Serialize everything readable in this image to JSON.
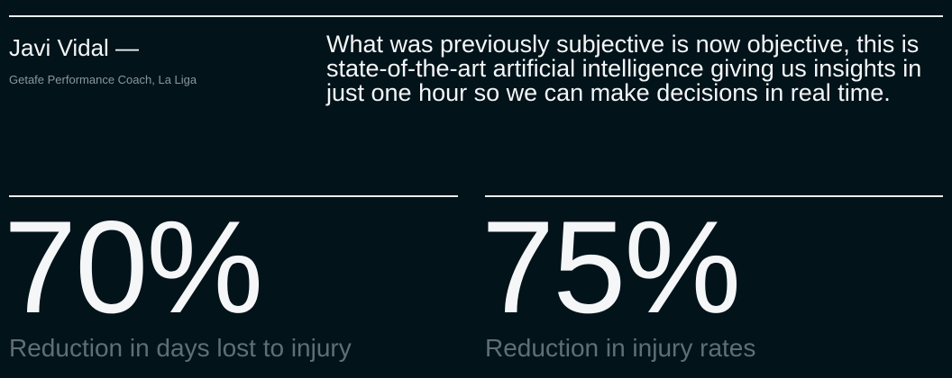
{
  "testimonial": {
    "author_name": "Javi Vidal —",
    "author_role": "Getafe Performance Coach, La Liga",
    "quote": "What was previously subjective is now objective, this is state-of-the-art artificial intelligence giving us insights in just one hour so we can make decisions in real time."
  },
  "stats": [
    {
      "value": "70%",
      "label": "Reduction in days lost to injury"
    },
    {
      "value": "75%",
      "label": "Reduction in injury rates"
    }
  ],
  "colors": {
    "background": "#02131a",
    "text": "#f4f6f7",
    "muted_text": "#5f6f75",
    "rule": "#e9eef0"
  }
}
